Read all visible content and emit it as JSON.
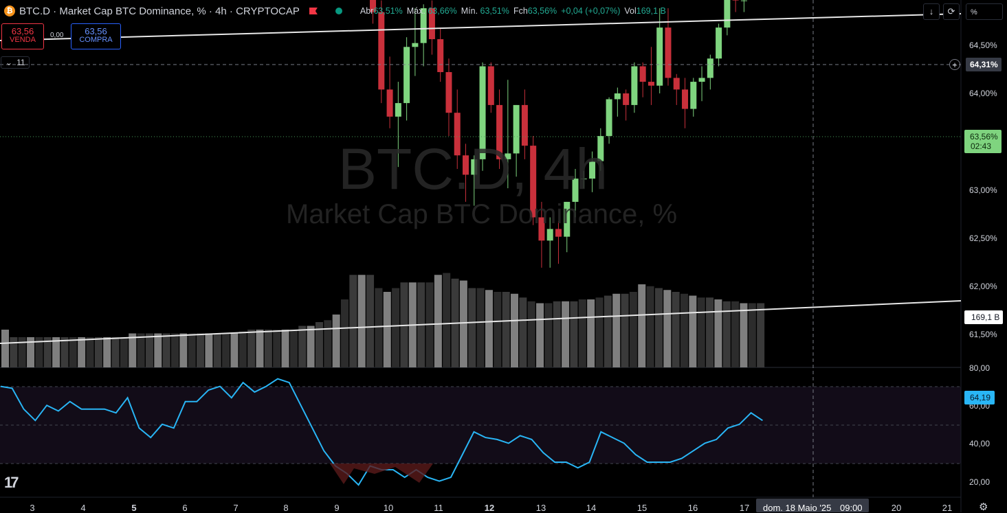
{
  "header": {
    "coin_icon": "bitcoin-icon",
    "title": "BTC.D · Market Cap BTC Dominance, % · 4h · CRYPTOCAP",
    "ohlc": [
      {
        "label": "Abr",
        "value": "63,51%"
      },
      {
        "label": "Máx.",
        "value": "63,66%"
      },
      {
        "label": "Mín.",
        "value": "63,51%"
      },
      {
        "label": "Fch",
        "value": "63,56%"
      },
      {
        "label": "",
        "value": "+0,04 (+0,07%)"
      },
      {
        "label": "Vol",
        "value": "169,1 B"
      }
    ]
  },
  "trade": {
    "sell_price": "63,56",
    "sell_label": "VENDA",
    "spread": "0,00",
    "buy_price": "63,56",
    "buy_label": "COMPRA"
  },
  "collapse_count": "11",
  "watermark": {
    "symbol": "BTC.D, 4h",
    "name": "Market Cap BTC Dominance, %"
  },
  "toolbar": {
    "percent_label": "%"
  },
  "chart_data": {
    "type": "candlestick",
    "price_axis_ticks": [
      "64,50%",
      "64,00%",
      "63,50%",
      "63,00%",
      "62,50%",
      "62,00%",
      "61,50%"
    ],
    "rsi_axis_ticks": [
      "80,00",
      "60,00",
      "40,00",
      "20,00"
    ],
    "time_axis_labels": [
      "3",
      "4",
      "5",
      "6",
      "7",
      "8",
      "9",
      "10",
      "11",
      "12",
      "13",
      "14",
      "15",
      "16",
      "17",
      "20",
      "21"
    ],
    "crosshair_price": "64,31%",
    "last_price": "63,56%",
    "countdown": "02:43",
    "volume_value": "169,1 B",
    "rsi_value": "64,19",
    "crosshair_time": "dom. 18 Maio '25",
    "crosshair_clock": "09:00",
    "candles": [
      [
        64.72,
        64.78,
        64.62,
        64.68
      ],
      [
        64.68,
        64.74,
        64.6,
        64.66
      ],
      [
        64.66,
        64.76,
        64.6,
        64.72
      ],
      [
        64.72,
        64.8,
        64.66,
        64.7
      ],
      [
        64.7,
        64.75,
        64.62,
        64.66
      ],
      [
        64.66,
        64.74,
        64.62,
        64.7
      ],
      [
        64.7,
        64.8,
        64.64,
        64.74
      ],
      [
        64.74,
        64.78,
        64.64,
        64.68
      ],
      [
        64.68,
        64.72,
        64.56,
        64.6
      ],
      [
        64.6,
        64.68,
        64.56,
        64.64
      ],
      [
        64.64,
        64.72,
        64.58,
        64.7
      ],
      [
        64.7,
        64.8,
        64.64,
        64.76
      ],
      [
        64.76,
        64.82,
        64.66,
        64.7
      ],
      [
        64.7,
        64.74,
        64.6,
        64.64
      ],
      [
        64.64,
        64.7,
        64.56,
        64.6
      ],
      [
        64.6,
        64.66,
        64.52,
        64.56
      ],
      [
        64.56,
        64.62,
        64.5,
        64.6
      ],
      [
        64.6,
        64.64,
        64.54,
        64.58
      ],
      [
        64.58,
        64.68,
        64.54,
        64.64
      ],
      [
        64.64,
        64.74,
        64.6,
        64.7
      ],
      [
        64.7,
        64.8,
        64.66,
        64.76
      ],
      [
        64.76,
        64.82,
        64.7,
        64.78
      ],
      [
        64.78,
        64.82,
        64.68,
        64.72
      ],
      [
        64.72,
        64.76,
        64.6,
        64.64
      ],
      [
        64.64,
        64.68,
        64.52,
        64.56
      ],
      [
        64.56,
        64.62,
        64.46,
        64.52
      ],
      [
        64.52,
        64.6,
        64.42,
        64.56
      ],
      [
        64.56,
        64.6,
        64.46,
        64.5
      ],
      [
        64.5,
        64.56,
        64.4,
        64.45
      ],
      [
        64.45,
        64.5,
        64.34,
        64.4
      ],
      [
        64.4,
        64.46,
        64.22,
        64.26
      ],
      [
        64.26,
        64.3,
        64.02,
        64.04
      ],
      [
        64.04,
        64.07,
        63.66,
        63.72
      ],
      [
        63.72,
        63.98,
        63.6,
        63.96
      ],
      [
        63.96,
        63.99,
        63.88,
        63.92
      ],
      [
        63.92,
        63.96,
        63.74,
        63.78
      ],
      [
        63.78,
        63.82,
        63.6,
        63.72
      ],
      [
        63.72,
        63.79,
        63.52,
        63.58
      ],
      [
        63.58,
        63.8,
        63.53,
        63.78
      ],
      [
        63.78,
        63.82,
        63.36,
        63.42
      ],
      [
        63.42,
        63.48,
        62.95,
        63.02
      ],
      [
        63.02,
        63.19,
        62.82,
        62.88
      ],
      [
        62.88,
        63.06,
        62.62,
        62.95
      ],
      [
        62.95,
        63.29,
        62.86,
        63.24
      ],
      [
        63.24,
        63.44,
        63.09,
        63.26
      ],
      [
        63.26,
        63.46,
        63.14,
        63.44
      ],
      [
        63.44,
        63.48,
        63.2,
        63.28
      ],
      [
        63.28,
        63.34,
        63.06,
        63.11
      ],
      [
        63.11,
        63.18,
        62.78,
        62.9
      ],
      [
        62.9,
        63.02,
        62.61,
        62.68
      ],
      [
        62.68,
        62.74,
        62.44,
        62.58
      ],
      [
        62.58,
        62.68,
        62.42,
        62.66
      ],
      [
        62.66,
        63.16,
        62.6,
        63.14
      ],
      [
        63.14,
        63.16,
        62.9,
        62.94
      ],
      [
        62.94,
        63.02,
        62.61,
        62.66
      ],
      [
        62.66,
        63.07,
        62.51,
        62.69
      ],
      [
        62.69,
        62.94,
        62.57,
        62.94
      ],
      [
        62.94,
        63.02,
        62.66,
        62.73
      ],
      [
        62.73,
        62.78,
        62.32,
        62.36
      ],
      [
        62.36,
        62.44,
        62.1,
        62.24
      ],
      [
        62.24,
        62.36,
        62.1,
        62.3
      ],
      [
        62.3,
        62.34,
        62.12,
        62.26
      ],
      [
        62.26,
        62.44,
        62.18,
        62.44
      ],
      [
        62.44,
        62.61,
        62.36,
        62.56
      ],
      [
        62.56,
        62.6,
        62.51,
        62.56
      ],
      [
        62.56,
        62.7,
        62.49,
        62.65
      ],
      [
        62.65,
        62.82,
        62.6,
        62.78
      ],
      [
        62.78,
        62.98,
        62.74,
        62.97
      ],
      [
        62.97,
        63.03,
        62.88,
        63.0
      ],
      [
        63.0,
        63.02,
        62.86,
        62.94
      ],
      [
        62.94,
        63.16,
        62.9,
        63.14
      ],
      [
        63.14,
        63.16,
        62.98,
        63.06
      ],
      [
        63.06,
        63.24,
        62.94,
        63.04
      ],
      [
        63.04,
        63.44,
        63.0,
        63.34
      ],
      [
        63.34,
        63.44,
        63.04,
        63.08
      ],
      [
        63.08,
        63.1,
        62.94,
        63.02
      ],
      [
        63.02,
        63.08,
        62.82,
        62.92
      ],
      [
        62.92,
        63.08,
        62.88,
        63.06
      ],
      [
        63.06,
        63.14,
        62.96,
        63.08
      ],
      [
        63.08,
        63.2,
        63.02,
        63.18
      ],
      [
        63.18,
        63.36,
        63.14,
        63.34
      ],
      [
        63.34,
        63.6,
        63.3,
        63.5
      ],
      [
        63.5,
        63.52,
        63.42,
        63.48
      ],
      [
        63.48,
        63.52,
        63.42,
        63.48
      ],
      [
        63.51,
        63.66,
        63.51,
        63.56
      ]
    ],
    "volume": [
      20,
      16,
      16,
      16,
      16,
      16,
      16,
      16,
      16,
      16,
      16,
      16,
      16,
      16,
      16,
      18,
      18,
      18,
      18,
      18,
      18,
      18,
      18,
      18,
      18,
      18,
      18,
      18,
      19,
      20,
      20,
      20,
      20,
      20,
      20,
      22,
      22,
      24,
      25,
      28,
      36,
      49,
      49,
      49,
      42,
      40,
      42,
      45,
      45,
      45,
      45,
      49,
      50,
      47,
      46,
      42,
      42,
      41,
      40,
      40,
      39,
      37,
      35,
      34,
      34,
      35,
      35,
      35,
      36,
      36,
      37,
      38,
      39,
      39,
      40,
      44,
      43,
      42,
      41,
      40,
      39,
      38,
      37,
      37,
      36,
      35,
      35,
      34,
      34,
      34,
      36,
      38,
      38,
      38,
      38,
      38,
      37,
      37,
      36,
      35,
      34
    ],
    "rsi": [
      70,
      69,
      58,
      52,
      60,
      57,
      62,
      58,
      58,
      58,
      56,
      64,
      48,
      43,
      50,
      48,
      62,
      62,
      68,
      70,
      64,
      72,
      67,
      70,
      74,
      72,
      60,
      48,
      36,
      28,
      24,
      18,
      28,
      26,
      26,
      22,
      26,
      22,
      20,
      22,
      34,
      46,
      43,
      42,
      40,
      44,
      42,
      35,
      30,
      30,
      27,
      30,
      46,
      43,
      40,
      34,
      30,
      30,
      30,
      32,
      36,
      40,
      42,
      48,
      50,
      56,
      52,
      48,
      52,
      56,
      60,
      64,
      60,
      55,
      52,
      56,
      58,
      60,
      62,
      64,
      64,
      64
    ]
  }
}
